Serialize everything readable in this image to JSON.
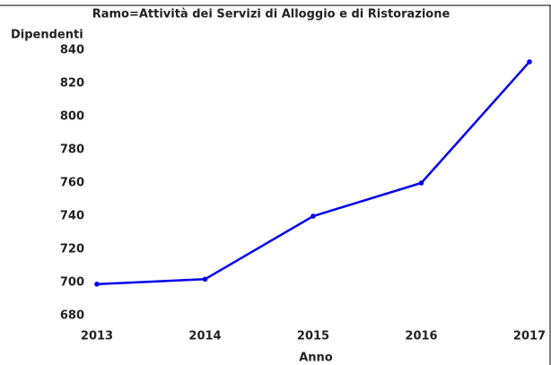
{
  "chart_data": {
    "type": "line",
    "title": "Ramo=Attività dei Servizi di Alloggio e di Ristorazione",
    "y_label": "Dipendenti",
    "x_label": "Anno",
    "x": [
      2013,
      2014,
      2015,
      2016,
      2017
    ],
    "series": [
      {
        "name": "Dipendenti",
        "color": "#0000ee",
        "values": [
          699,
          702,
          740,
          760,
          833
        ]
      }
    ],
    "xlim": [
      2013,
      2017
    ],
    "xticks": [
      2013,
      2014,
      2015,
      2016,
      2017
    ],
    "ylim": [
      680,
      840
    ],
    "yticks": [
      680,
      700,
      720,
      740,
      760,
      780,
      800,
      820,
      840
    ],
    "grid": false,
    "legend": false
  }
}
